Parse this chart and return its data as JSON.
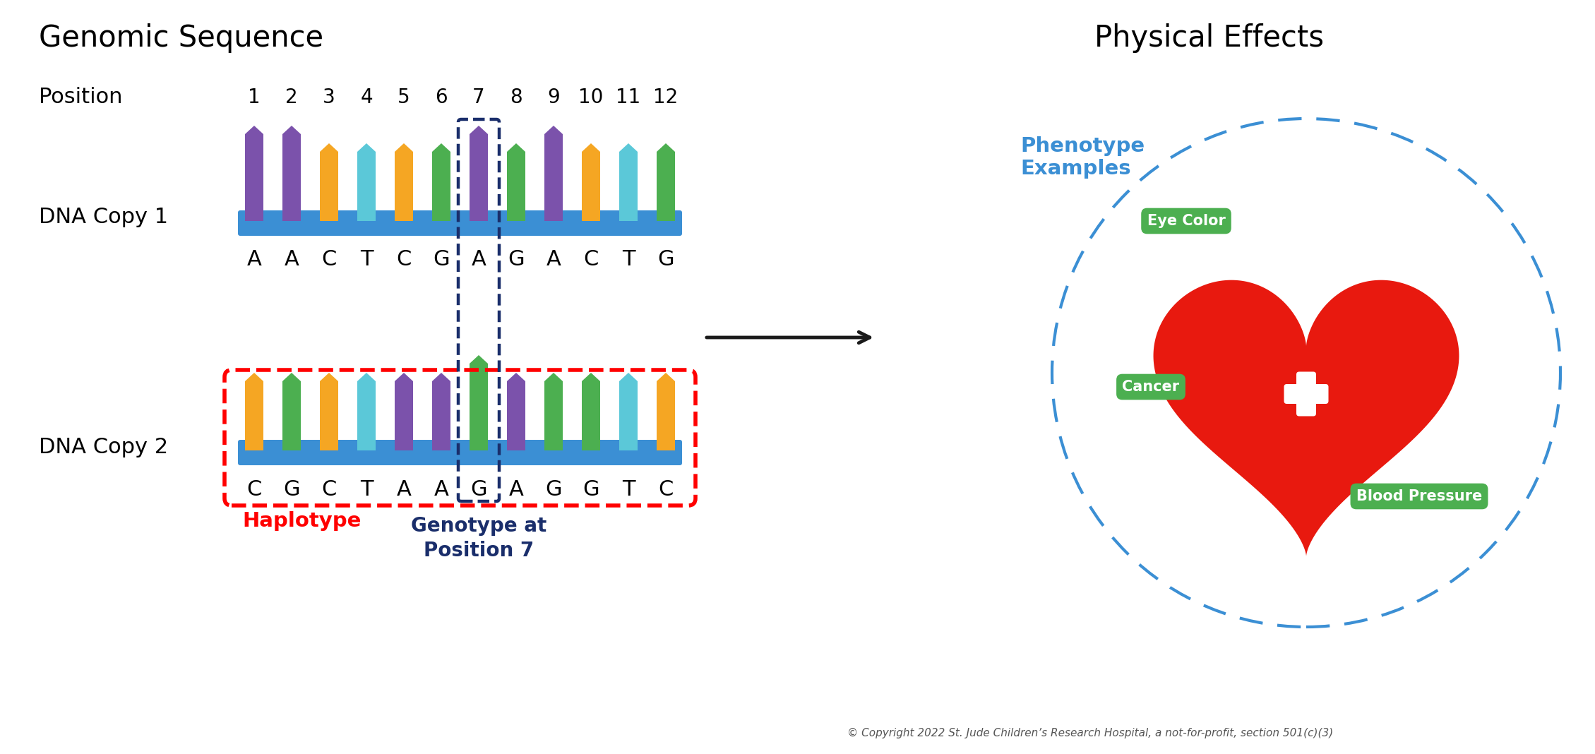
{
  "title_left": "Genomic Sequence",
  "title_right": "Physical Effects",
  "positions": [
    1,
    2,
    3,
    4,
    5,
    6,
    7,
    8,
    9,
    10,
    11,
    12
  ],
  "copy1_bases": [
    "A",
    "A",
    "C",
    "T",
    "C",
    "G",
    "A",
    "G",
    "A",
    "C",
    "T",
    "G"
  ],
  "copy2_bases": [
    "C",
    "G",
    "C",
    "T",
    "A",
    "A",
    "G",
    "A",
    "G",
    "G",
    "T",
    "C"
  ],
  "base_colors": {
    "A": "#7B52AB",
    "C": "#F5A623",
    "T": "#5BC8D8",
    "G": "#4CAF50"
  },
  "backbone_color": "#3B8FD4",
  "haplotype_box_color": "#FF0000",
  "genotype_box_color": "#1A2E6B",
  "arrow_color": "#1A1A1A",
  "phenotype_circle_color": "#3B8FD4",
  "heart_color": "#E8190F",
  "badge_color": "#4CAF50",
  "phenotype_label_color": "#3B8FD4",
  "haplotype_label_color": "#FF0000",
  "genotype_label_color": "#1A2E6B",
  "copyright_text": "© Copyright 2022 St. Jude Children’s Research Hospital, a not-for-profit, section 501(c)(3)",
  "bg_color": "#FFFFFF",
  "copy1_bar_heights": [
    1.35,
    1.35,
    1.1,
    1.1,
    1.1,
    1.1,
    1.35,
    1.1,
    1.35,
    1.1,
    1.1,
    1.1
  ],
  "copy2_bar_heights": [
    1.1,
    1.1,
    1.1,
    1.1,
    1.1,
    1.1,
    1.35,
    1.1,
    1.1,
    1.1,
    1.1,
    1.1
  ]
}
